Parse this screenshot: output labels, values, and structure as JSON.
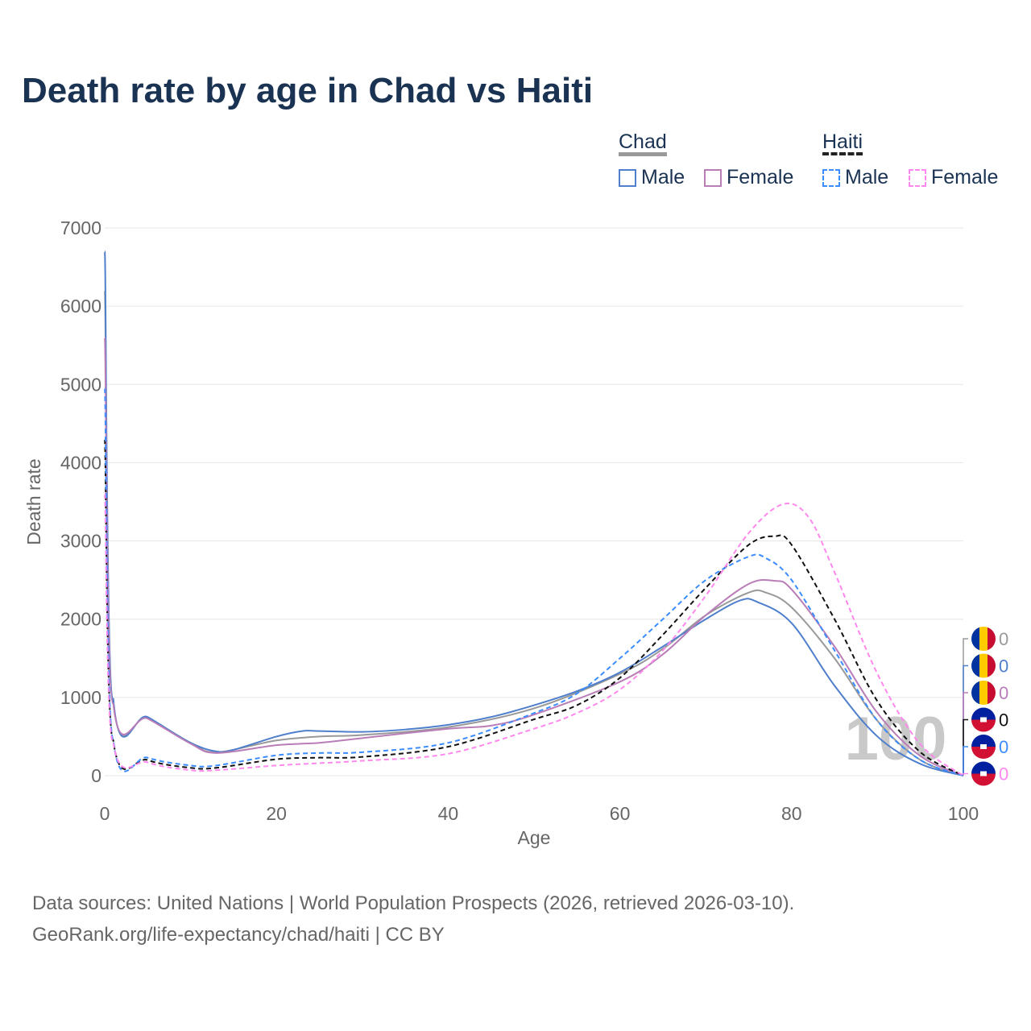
{
  "chart_data": {
    "type": "line",
    "title": "Death rate by age in Chad vs Haiti",
    "xlabel": "Age",
    "ylabel": "Death rate",
    "xlim": [
      0,
      100
    ],
    "ylim": [
      0,
      7000
    ],
    "xticks": [
      "0",
      "20",
      "40",
      "60",
      "80",
      "100"
    ],
    "yticks": [
      "0",
      "1000",
      "2000",
      "3000",
      "4000",
      "5000",
      "6000",
      "7000"
    ],
    "current_age": "100",
    "legend_groups": [
      {
        "name": "Chad",
        "items": [
          "Male",
          "Female"
        ]
      },
      {
        "name": "Haiti",
        "items": [
          "Male",
          "Female"
        ]
      }
    ],
    "series": [
      {
        "name": "Chad total",
        "color": "#999999",
        "dash": false,
        "end_value": "0",
        "x": [
          0,
          1,
          5,
          10,
          13,
          20,
          25,
          30,
          40,
          50,
          60,
          65,
          70,
          75,
          77,
          80,
          85,
          90,
          95,
          100
        ],
        "y": [
          6200,
          950,
          740,
          420,
          300,
          450,
          500,
          520,
          620,
          860,
          1300,
          1620,
          2050,
          2340,
          2340,
          2150,
          1500,
          700,
          200,
          0
        ]
      },
      {
        "name": "Chad male",
        "color": "#4f7fcc",
        "dash": false,
        "end_value": "0",
        "x": [
          0,
          1,
          5,
          10,
          13,
          15,
          20,
          23,
          25,
          30,
          35,
          40,
          45,
          50,
          55,
          60,
          65,
          70,
          74,
          76,
          80,
          85,
          90,
          95,
          100
        ],
        "y": [
          6700,
          980,
          750,
          420,
          310,
          330,
          500,
          570,
          570,
          560,
          590,
          650,
          750,
          900,
          1080,
          1320,
          1650,
          2000,
          2240,
          2220,
          1950,
          1150,
          500,
          150,
          0
        ]
      },
      {
        "name": "Chad female",
        "color": "#b97db8",
        "dash": false,
        "end_value": "0",
        "x": [
          0,
          1,
          5,
          10,
          13,
          20,
          25,
          30,
          40,
          45,
          50,
          60,
          65,
          70,
          75,
          78,
          80,
          85,
          90,
          95,
          100
        ],
        "y": [
          5600,
          920,
          730,
          410,
          290,
          390,
          420,
          480,
          600,
          640,
          780,
          1200,
          1550,
          2050,
          2450,
          2490,
          2380,
          1650,
          800,
          250,
          0
        ]
      },
      {
        "name": "Haiti total",
        "color": "#111111",
        "dash": true,
        "end_value": "0",
        "x": [
          0,
          1,
          5,
          10,
          13,
          20,
          25,
          30,
          40,
          50,
          55,
          60,
          65,
          70,
          75,
          78,
          80,
          85,
          90,
          95,
          100
        ],
        "y": [
          4300,
          450,
          200,
          100,
          100,
          210,
          230,
          240,
          370,
          720,
          900,
          1250,
          1800,
          2400,
          2950,
          3060,
          2950,
          2000,
          950,
          300,
          0
        ]
      },
      {
        "name": "Haiti male",
        "color": "#3b8cff",
        "dash": true,
        "end_value": "0",
        "x": [
          0,
          1,
          5,
          10,
          13,
          20,
          25,
          30,
          40,
          50,
          55,
          60,
          65,
          70,
          75,
          77,
          80,
          85,
          90,
          95,
          100
        ],
        "y": [
          4950,
          460,
          230,
          130,
          130,
          260,
          290,
          300,
          420,
          800,
          1050,
          1500,
          2000,
          2500,
          2800,
          2780,
          2500,
          1600,
          700,
          200,
          0
        ]
      },
      {
        "name": "Haiti female",
        "color": "#ff88ee",
        "dash": true,
        "end_value": "0",
        "x": [
          0,
          1,
          5,
          10,
          13,
          20,
          25,
          30,
          40,
          50,
          55,
          60,
          65,
          70,
          75,
          79,
          82,
          85,
          90,
          95,
          100
        ],
        "y": [
          3600,
          420,
          170,
          70,
          70,
          130,
          160,
          190,
          280,
          600,
          800,
          1100,
          1600,
          2300,
          3100,
          3470,
          3300,
          2600,
          1300,
          400,
          0
        ]
      }
    ]
  },
  "footer": {
    "line1": "Data sources: United Nations | World Population Prospects (2026, retrieved 2026-03-10).",
    "line2": "GeoRank.org/life-expectancy/chad/haiti | CC BY"
  }
}
